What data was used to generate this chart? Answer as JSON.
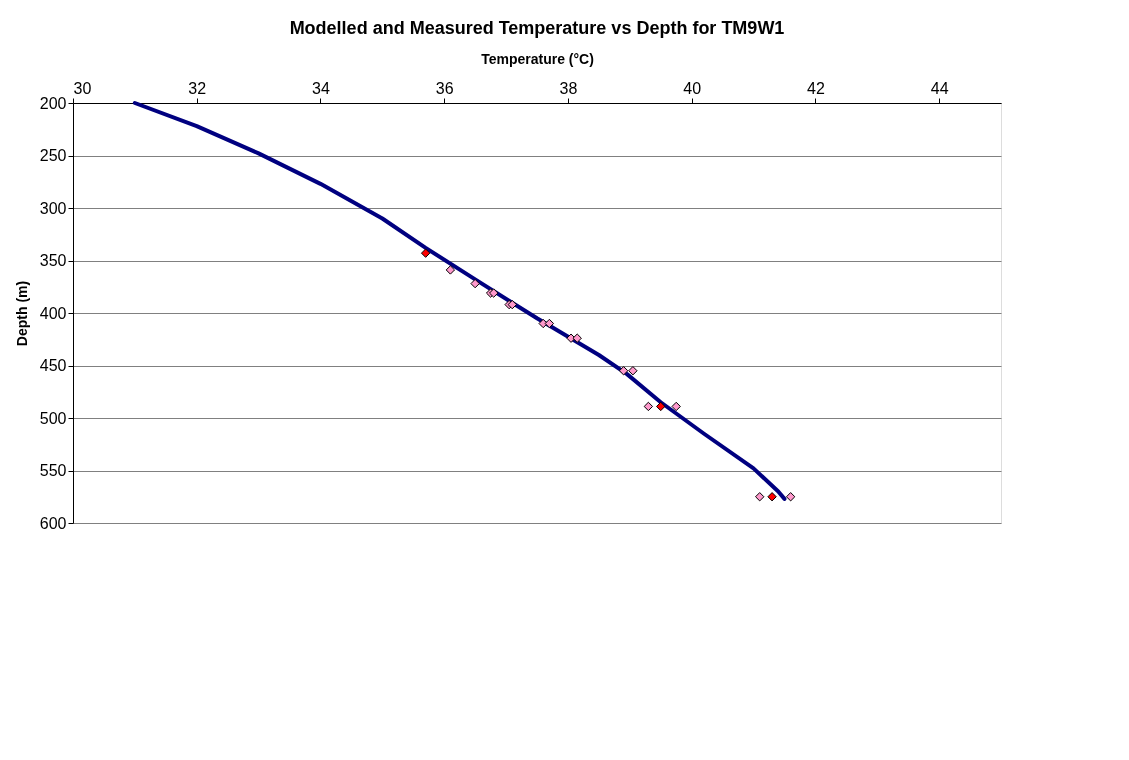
{
  "chart_data": {
    "type": "scatter",
    "title": "Modelled and Measured Temperature vs Depth for TM9W1",
    "xlabel": "Temperature (°C)",
    "ylabel": "Depth (m)",
    "xlim": [
      30,
      45
    ],
    "xticks": [
      30,
      32,
      34,
      36,
      38,
      40,
      42,
      44
    ],
    "ylim": [
      600,
      200
    ],
    "yticks": [
      200,
      250,
      300,
      350,
      400,
      450,
      500,
      550,
      600
    ],
    "grid": "y",
    "series": [
      {
        "type": "line",
        "marker": "none",
        "color": "#000080",
        "x": [
          31,
          32,
          33,
          34,
          35,
          35.7,
          36.5,
          37.5,
          38.5,
          38.95,
          39.5,
          40.2,
          41,
          41.4,
          41.5
        ],
        "values": [
          200,
          222,
          248,
          277,
          310,
          338,
          368,
          405,
          440,
          458,
          485,
          515,
          548,
          570,
          577
        ]
      },
      {
        "marker": "diamond",
        "color": "#ff99cc",
        "x": [
          36.1,
          36.5,
          36.75,
          36.8,
          37.05,
          37.1,
          37.6,
          37.7,
          38.05,
          38.15,
          38.9,
          39.05,
          39.3,
          39.75,
          41.1,
          41.6
        ],
        "values": [
          359,
          372,
          381,
          381,
          392,
          392,
          410,
          410,
          424,
          424,
          455,
          455,
          489,
          489,
          575,
          575
        ]
      },
      {
        "marker": "diamond",
        "color": "#ff0000",
        "x": [
          35.7,
          39.5,
          41.3
        ],
        "values": [
          343,
          489,
          575
        ]
      }
    ]
  }
}
